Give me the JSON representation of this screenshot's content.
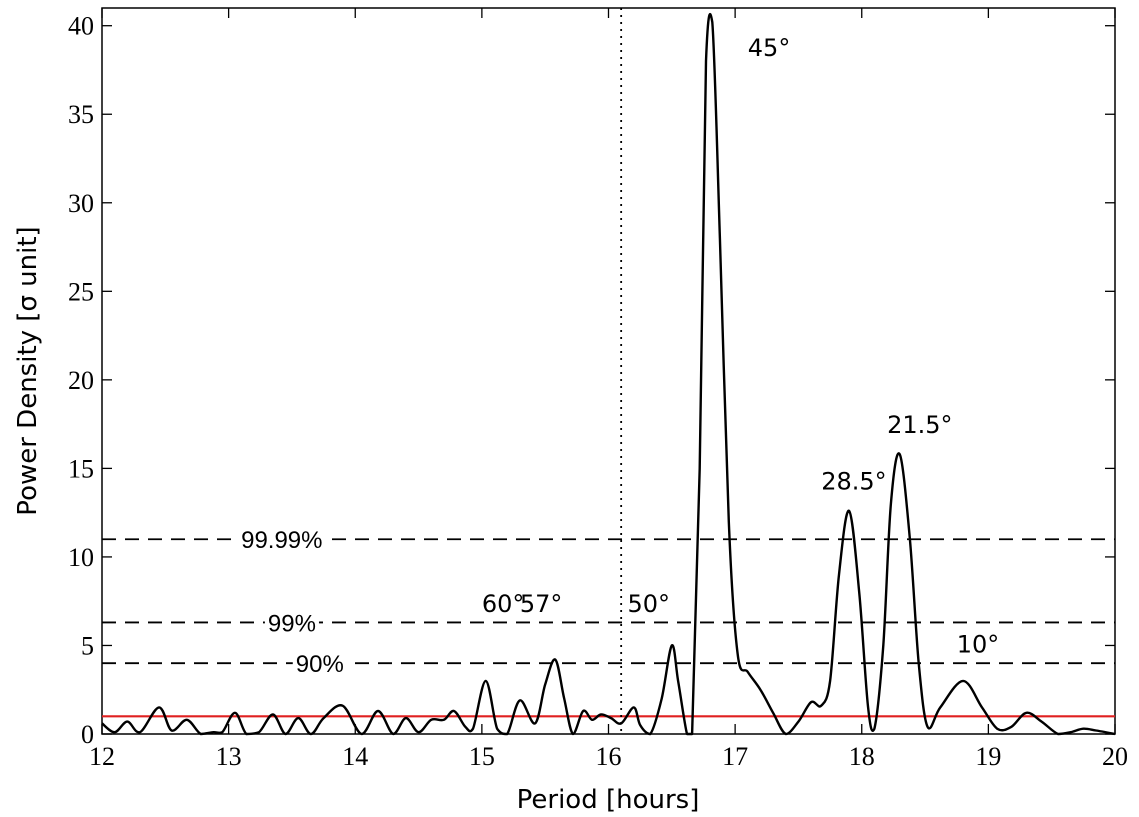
{
  "chart_data": {
    "type": "line",
    "title": "",
    "xlabel": "Period [hours]",
    "ylabel": "Power Density [σ unit]",
    "xlim": [
      12,
      20
    ],
    "ylim": [
      0,
      41
    ],
    "x_ticks": [
      12,
      13,
      14,
      15,
      16,
      17,
      18,
      19,
      20
    ],
    "y_ticks": [
      0,
      5,
      10,
      15,
      20,
      25,
      30,
      35,
      40
    ],
    "grid": false,
    "series": [
      {
        "color": "#000000",
        "style": "solid",
        "x": [
          12.0,
          12.1,
          12.2,
          12.3,
          12.45,
          12.55,
          12.67,
          12.78,
          12.88,
          12.95,
          13.05,
          13.14,
          13.24,
          13.35,
          13.45,
          13.55,
          13.65,
          13.75,
          13.9,
          14.05,
          14.18,
          14.3,
          14.4,
          14.5,
          14.6,
          14.7,
          14.78,
          14.87,
          14.93,
          15.03,
          15.12,
          15.2,
          15.3,
          15.42,
          15.5,
          15.58,
          15.65,
          15.72,
          15.8,
          15.87,
          15.94,
          16.02,
          16.1,
          16.2,
          16.25,
          16.33,
          16.42,
          16.5,
          16.55,
          16.62,
          16.66,
          16.72,
          16.77,
          16.82,
          16.88,
          16.95,
          17.02,
          17.1,
          17.2,
          17.3,
          17.4,
          17.5,
          17.6,
          17.68,
          17.75,
          17.82,
          17.9,
          17.98,
          18.05,
          18.1,
          18.17,
          18.23,
          18.3,
          18.38,
          18.45,
          18.52,
          18.62,
          18.8,
          18.95,
          19.07,
          19.18,
          19.3,
          19.42,
          19.55,
          19.65,
          19.75,
          19.85,
          20.0
        ],
        "y": [
          0.6,
          0.1,
          0.7,
          0.1,
          1.5,
          0.2,
          0.8,
          0.0,
          0.1,
          0.1,
          1.2,
          0.0,
          0.1,
          1.1,
          0.0,
          0.9,
          0.0,
          0.9,
          1.6,
          0.0,
          1.3,
          0.0,
          0.9,
          0.1,
          0.8,
          0.8,
          1.3,
          0.4,
          0.3,
          3.0,
          0.3,
          0.0,
          1.9,
          0.6,
          2.8,
          4.2,
          2.0,
          0.0,
          1.3,
          0.8,
          1.1,
          0.9,
          0.6,
          1.5,
          0.5,
          0.0,
          2.0,
          5.0,
          3.0,
          0.0,
          0.0,
          15.0,
          38.0,
          40.2,
          28.0,
          12.0,
          4.5,
          3.5,
          2.5,
          1.2,
          0.0,
          0.7,
          1.8,
          1.6,
          3.0,
          9.0,
          12.6,
          8.0,
          1.5,
          0.3,
          5.0,
          13.0,
          15.8,
          11.0,
          4.0,
          0.4,
          1.5,
          3.0,
          1.5,
          0.3,
          0.4,
          1.2,
          0.7,
          0.0,
          0.1,
          0.3,
          0.2,
          0.0
        ]
      }
    ],
    "reference_lines": [
      {
        "orientation": "horizontal",
        "y": 1.0,
        "color": "#e02020",
        "style": "solid"
      },
      {
        "orientation": "horizontal",
        "y": 11.0,
        "color": "#000000",
        "style": "dashed",
        "label": "99.99%",
        "label_x": 13.42
      },
      {
        "orientation": "horizontal",
        "y": 6.3,
        "color": "#000000",
        "style": "dashed",
        "label": "99%",
        "label_x": 13.5
      },
      {
        "orientation": "horizontal",
        "y": 4.0,
        "color": "#000000",
        "style": "dashed",
        "label": "90%",
        "label_x": 13.72
      },
      {
        "orientation": "vertical",
        "x": 16.1,
        "color": "#000000",
        "style": "dotted"
      }
    ],
    "annotations": [
      {
        "text": "45°",
        "x": 17.1,
        "y": 38.3
      },
      {
        "text": "21.5°",
        "x": 18.2,
        "y": 17.0
      },
      {
        "text": "28.5°",
        "x": 17.68,
        "y": 13.8
      },
      {
        "text": "60°",
        "x": 15.0,
        "y": 6.9
      },
      {
        "text": "57°",
        "x": 15.3,
        "y": 6.9
      },
      {
        "text": "50°",
        "x": 16.15,
        "y": 6.9
      },
      {
        "text": "10°",
        "x": 18.75,
        "y": 4.6
      }
    ]
  }
}
